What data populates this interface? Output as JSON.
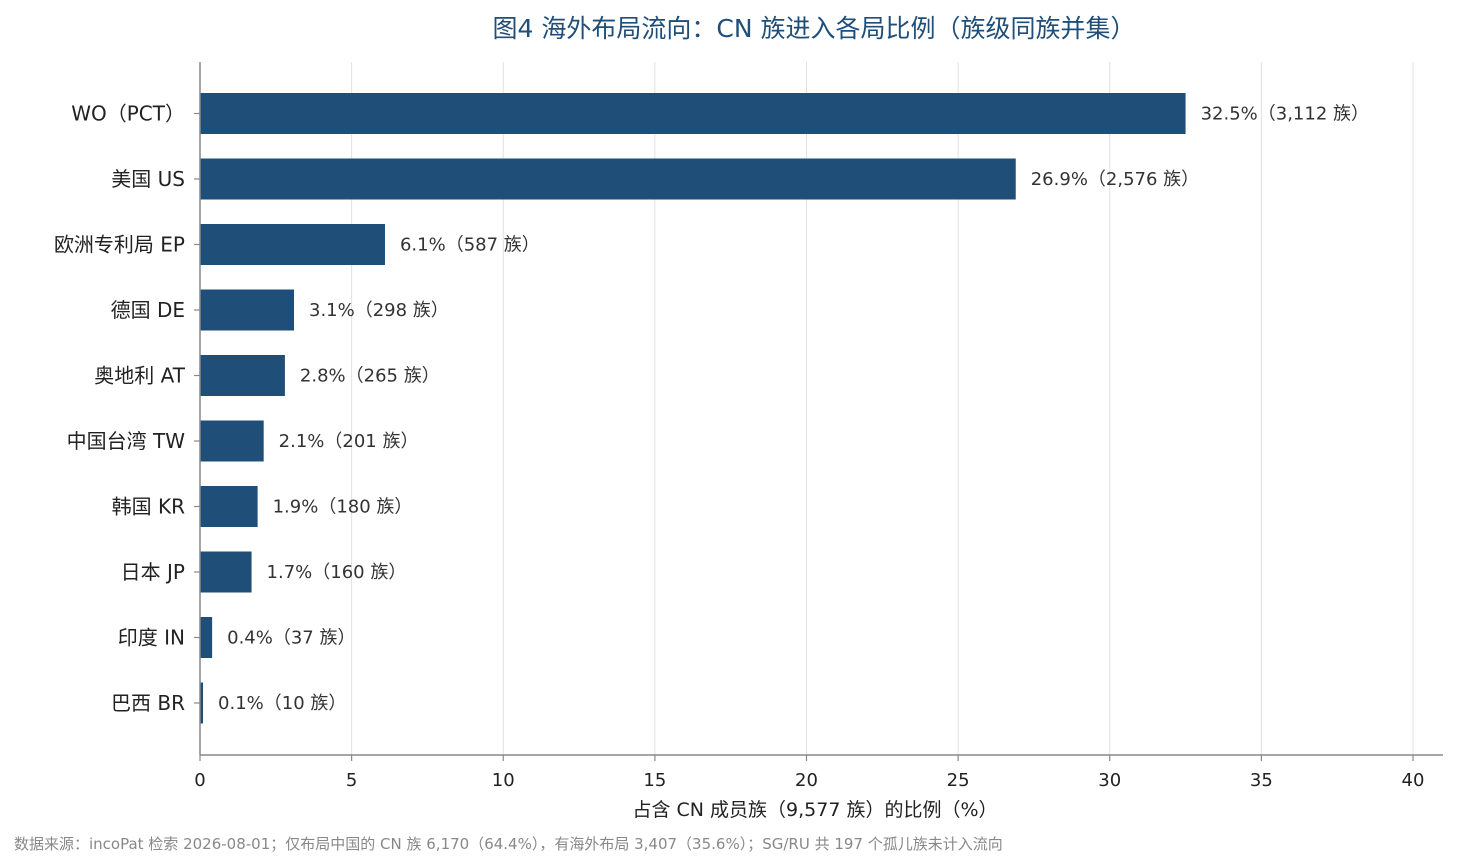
{
  "colors": {
    "bar": "#1f4e79",
    "title": "#1f4e79",
    "grid": "#e0e0e0",
    "axis": "#888888",
    "note": "#888888"
  },
  "chart_data": {
    "type": "bar",
    "orientation": "horizontal",
    "title": "图4  海外布局流向：CN 族进入各局比例（族级同族并集）",
    "xlabel": "占含 CN 成员族（9,577 族）的比例（%）",
    "ylabel": "",
    "xlim": [
      0,
      40
    ],
    "xticks": [
      0,
      5,
      10,
      15,
      20,
      25,
      30,
      35,
      40
    ],
    "grid": "vertical",
    "categories": [
      "WO（PCT）",
      "美国 US",
      "欧洲专利局 EP",
      "德国 DE",
      "奥地利 AT",
      "中国台湾 TW",
      "韩国 KR",
      "日本 JP",
      "印度 IN",
      "巴西 BR"
    ],
    "values": [
      32.5,
      26.9,
      6.1,
      3.1,
      2.8,
      2.1,
      1.9,
      1.7,
      0.4,
      0.1
    ],
    "data_labels": [
      "32.5%（3,112 族）",
      "26.9%（2,576 族）",
      "6.1%（587 族）",
      "3.1%（298 族）",
      "2.8%（265 族）",
      "2.1%（201 族）",
      "1.9%（180 族）",
      "1.7%（160 族）",
      "0.4%（37 族）",
      "0.1%（10 族）"
    ]
  },
  "footnote": "数据来源：incoPat 检索 2026-08-01；仅布局中国的 CN 族 6,170（64.4%），有海外布局 3,407（35.6%）；SG/RU 共 197 个孤儿族未计入流向"
}
